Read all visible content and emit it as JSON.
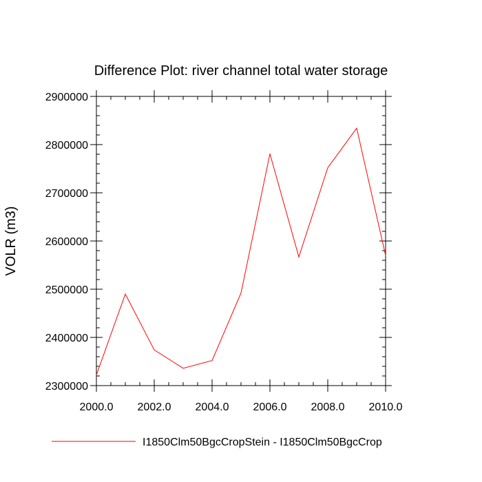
{
  "chart_data": {
    "type": "line",
    "title": "Difference Plot: river channel total water storage",
    "xlabel": "",
    "ylabel": "VOLR  (m3)",
    "xlim": [
      2000,
      2010
    ],
    "ylim": [
      2300000,
      2900000
    ],
    "x_ticks": [
      2000,
      2002,
      2004,
      2006,
      2008,
      2010
    ],
    "x_tick_labels": [
      "2000.0",
      "2002.0",
      "2004.0",
      "2006.0",
      "2008.0",
      "2010.0"
    ],
    "y_ticks": [
      2300000,
      2400000,
      2500000,
      2600000,
      2700000,
      2800000,
      2900000
    ],
    "y_tick_labels": [
      "2300000",
      "2400000",
      "2500000",
      "2600000",
      "2700000",
      "2800000",
      "2900000"
    ],
    "x": [
      2000,
      2001,
      2002,
      2003,
      2004,
      2005,
      2006,
      2007,
      2008,
      2009,
      2010
    ],
    "series": [
      {
        "name": "I1850Clm50BgcCropStein - I1850Clm50BgcCrop",
        "color": "#ff0000",
        "values": [
          2322000,
          2490000,
          2374000,
          2336000,
          2352000,
          2492000,
          2781000,
          2567000,
          2752000,
          2834000,
          2570000
        ]
      }
    ],
    "grid": false,
    "legend_position": "bottom"
  }
}
